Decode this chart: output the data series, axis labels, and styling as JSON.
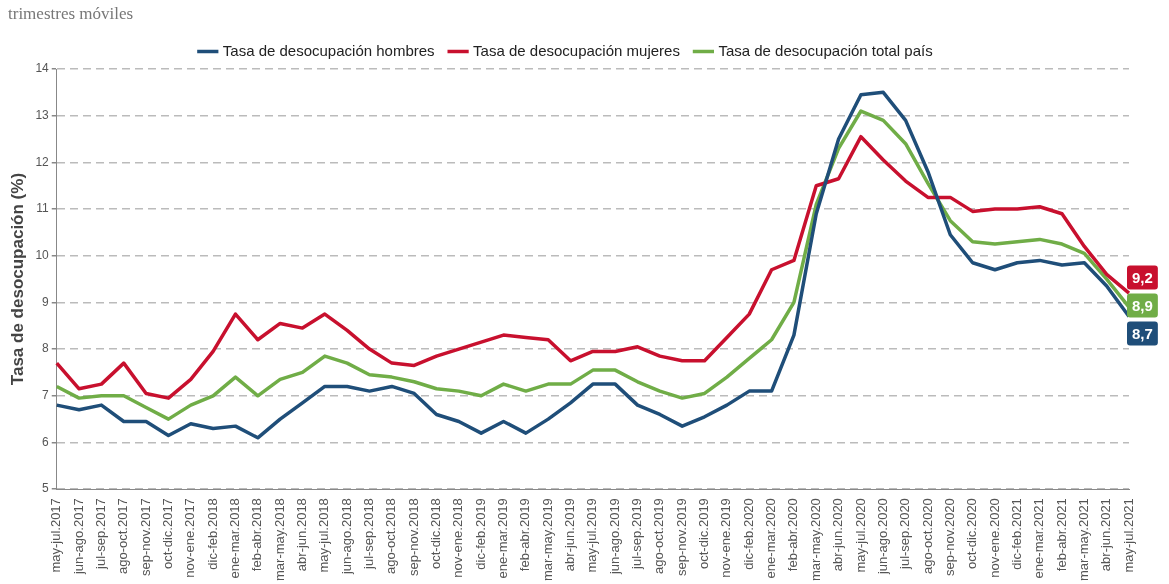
{
  "chart_data": {
    "type": "line",
    "title": "trimestres móviles",
    "ylabel": "Tasa de desocupación (%)",
    "categories": [
      "may-jul.2017",
      "jun-ago.2017",
      "jul-sep.2017",
      "ago-oct.2017",
      "sep-nov.2017",
      "oct-dic.2017",
      "nov-ene.2017",
      "dic-feb.2018",
      "ene-mar.2018",
      "feb-abr.2018",
      "mar-may.2018",
      "abr-jun.2018",
      "may-jul.2018",
      "jun-ago.2018",
      "jul-sep.2018",
      "ago-oct.2018",
      "sep-nov.2018",
      "oct-dic.2018",
      "nov-ene.2018",
      "dic-feb.2019",
      "ene-mar.2019",
      "feb-abr.2019",
      "mar-may.2019",
      "abr-jun.2019",
      "may-jul.2019",
      "jun-ago.2019",
      "jul-sep.2019",
      "ago-oct.2019",
      "sep-nov.2019",
      "oct-dic.2019",
      "nov-ene.2019",
      "dic-feb.2020",
      "ene-mar.2020",
      "feb-abr.2020",
      "mar-may.2020",
      "abr-jun.2020",
      "may-jul.2020",
      "jun-ago.2020",
      "jul-sep.2020",
      "ago-oct.2020",
      "sep-nov.2020",
      "oct-dic.2020",
      "nov-ene.2020",
      "dic-feb.2021",
      "ene-mar.2021",
      "feb-abr.2021",
      "mar-may.2021",
      "abr-jun.2021",
      "may-jul.2021"
    ],
    "series": [
      {
        "name": "Tasa de desocupación hombres",
        "color": "#1f4e79",
        "values": [
          6.8,
          6.7,
          6.8,
          6.45,
          6.45,
          6.15,
          6.4,
          6.3,
          6.35,
          6.1,
          6.5,
          6.85,
          7.2,
          7.2,
          7.1,
          7.2,
          7.05,
          6.6,
          6.45,
          6.2,
          6.45,
          6.2,
          6.5,
          6.85,
          7.25,
          7.25,
          6.8,
          6.6,
          6.35,
          6.55,
          6.8,
          7.1,
          7.1,
          8.3,
          10.9,
          12.5,
          13.45,
          13.5,
          12.9,
          11.8,
          10.45,
          9.85,
          9.7,
          9.85,
          9.9,
          9.8,
          9.85,
          9.35,
          8.7
        ],
        "value_labels": [
          null,
          null,
          null,
          null,
          null,
          null,
          null,
          null,
          null,
          null,
          null,
          null,
          null,
          null,
          null,
          null,
          null,
          null,
          null,
          null,
          null,
          null,
          null,
          null,
          null,
          null,
          null,
          null,
          null,
          null,
          null,
          null,
          null,
          null,
          null,
          null,
          null,
          null,
          null,
          null,
          null,
          null,
          null,
          null,
          null,
          null,
          null,
          null,
          "8,7"
        ]
      },
      {
        "name": "Tasa de desocupación mujeres",
        "color": "#c8102e",
        "values": [
          7.7,
          7.15,
          7.25,
          7.7,
          7.05,
          6.95,
          7.35,
          7.95,
          8.75,
          8.2,
          8.55,
          8.45,
          8.75,
          8.4,
          8.0,
          7.7,
          7.65,
          7.85,
          8.0,
          8.15,
          8.3,
          8.25,
          8.2,
          7.75,
          7.95,
          7.95,
          8.05,
          7.85,
          7.75,
          7.75,
          8.25,
          8.75,
          9.7,
          9.9,
          11.5,
          11.65,
          12.55,
          12.05,
          11.6,
          11.25,
          11.25,
          10.95,
          11.0,
          11.0,
          11.05,
          10.9,
          10.2,
          9.6,
          9.2
        ],
        "value_labels": [
          null,
          null,
          null,
          null,
          null,
          null,
          null,
          null,
          null,
          null,
          null,
          null,
          null,
          null,
          null,
          null,
          null,
          null,
          null,
          null,
          null,
          null,
          null,
          null,
          null,
          null,
          null,
          null,
          null,
          null,
          null,
          null,
          null,
          null,
          null,
          null,
          null,
          null,
          null,
          null,
          null,
          null,
          null,
          null,
          null,
          null,
          null,
          null,
          "9,2"
        ]
      },
      {
        "name": "Tasa de desocupación total país",
        "color": "#70ad47",
        "values": [
          7.2,
          6.95,
          7.0,
          7.0,
          6.75,
          6.5,
          6.8,
          7.0,
          7.4,
          7.0,
          7.35,
          7.5,
          7.85,
          7.7,
          7.45,
          7.4,
          7.3,
          7.15,
          7.1,
          7.0,
          7.25,
          7.1,
          7.25,
          7.25,
          7.55,
          7.55,
          7.3,
          7.1,
          6.95,
          7.05,
          7.4,
          7.8,
          8.2,
          9.0,
          11.1,
          12.3,
          13.1,
          12.9,
          12.4,
          11.55,
          10.75,
          10.3,
          10.25,
          10.3,
          10.35,
          10.25,
          10.05,
          9.5,
          8.9
        ],
        "value_labels": [
          null,
          null,
          null,
          null,
          null,
          null,
          null,
          null,
          null,
          null,
          null,
          null,
          null,
          null,
          null,
          null,
          null,
          null,
          null,
          null,
          null,
          null,
          null,
          null,
          null,
          null,
          null,
          null,
          null,
          null,
          null,
          null,
          null,
          null,
          null,
          null,
          null,
          null,
          null,
          null,
          null,
          null,
          null,
          null,
          null,
          null,
          null,
          null,
          "8,9"
        ]
      }
    ],
    "ylim": [
      5,
      14
    ],
    "yticks": [
      5,
      6,
      7,
      8,
      9,
      10,
      11,
      12,
      13,
      14
    ],
    "grid": "y",
    "legend": "top",
    "marker": "none",
    "line_style": "solid"
  }
}
